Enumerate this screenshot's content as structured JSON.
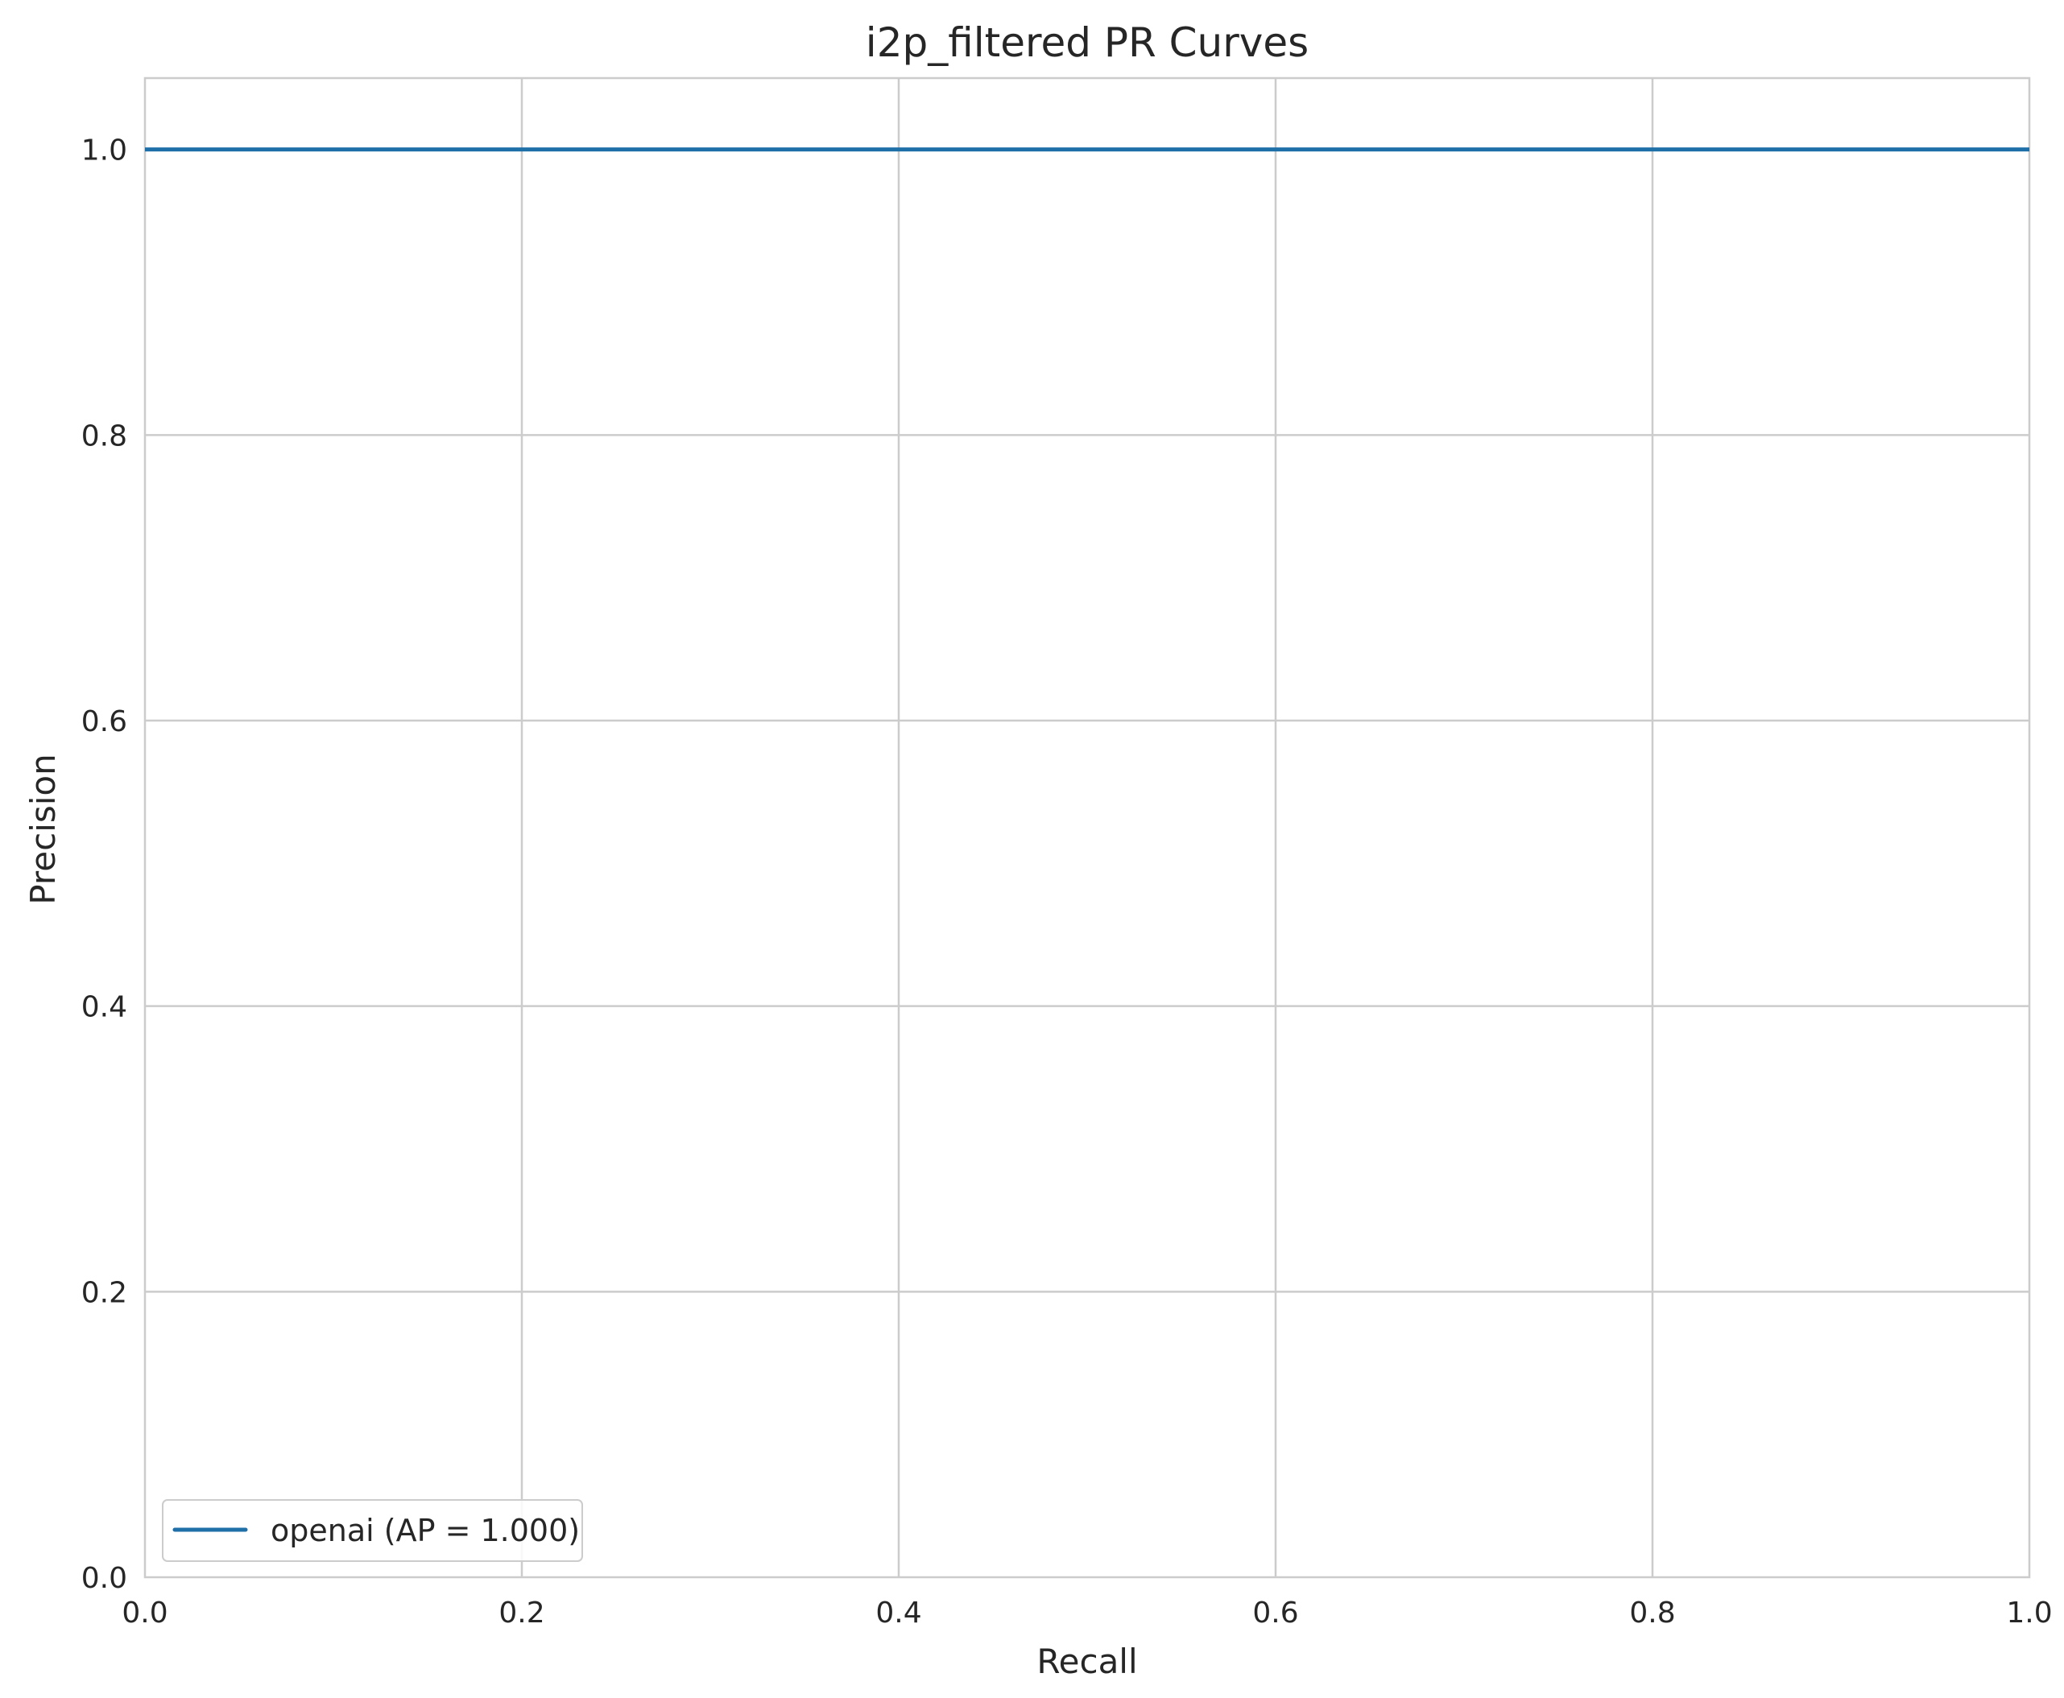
{
  "chart_data": {
    "type": "line",
    "title": "i2p_filtered PR Curves",
    "xlabel": "Recall",
    "ylabel": "Precision",
    "xlim": [
      0.0,
      1.0
    ],
    "ylim": [
      0.0,
      1.05
    ],
    "x_ticks": [
      0.0,
      0.2,
      0.4,
      0.6,
      0.8,
      1.0
    ],
    "y_ticks": [
      0.0,
      0.2,
      0.4,
      0.6,
      0.8,
      1.0
    ],
    "x_tick_labels": [
      "0.0",
      "0.2",
      "0.4",
      "0.6",
      "0.8",
      "1.0"
    ],
    "y_tick_labels": [
      "0.0",
      "0.2",
      "0.4",
      "0.6",
      "0.8",
      "1.0"
    ],
    "grid": true,
    "legend": {
      "position": "lower-left",
      "entries": [
        "openai (AP = 1.000)"
      ]
    },
    "series": [
      {
        "name": "openai (AP = 1.000)",
        "color": "#1f6fa8",
        "x": [
          0.0,
          1.0
        ],
        "y": [
          1.0,
          1.0
        ]
      }
    ]
  }
}
